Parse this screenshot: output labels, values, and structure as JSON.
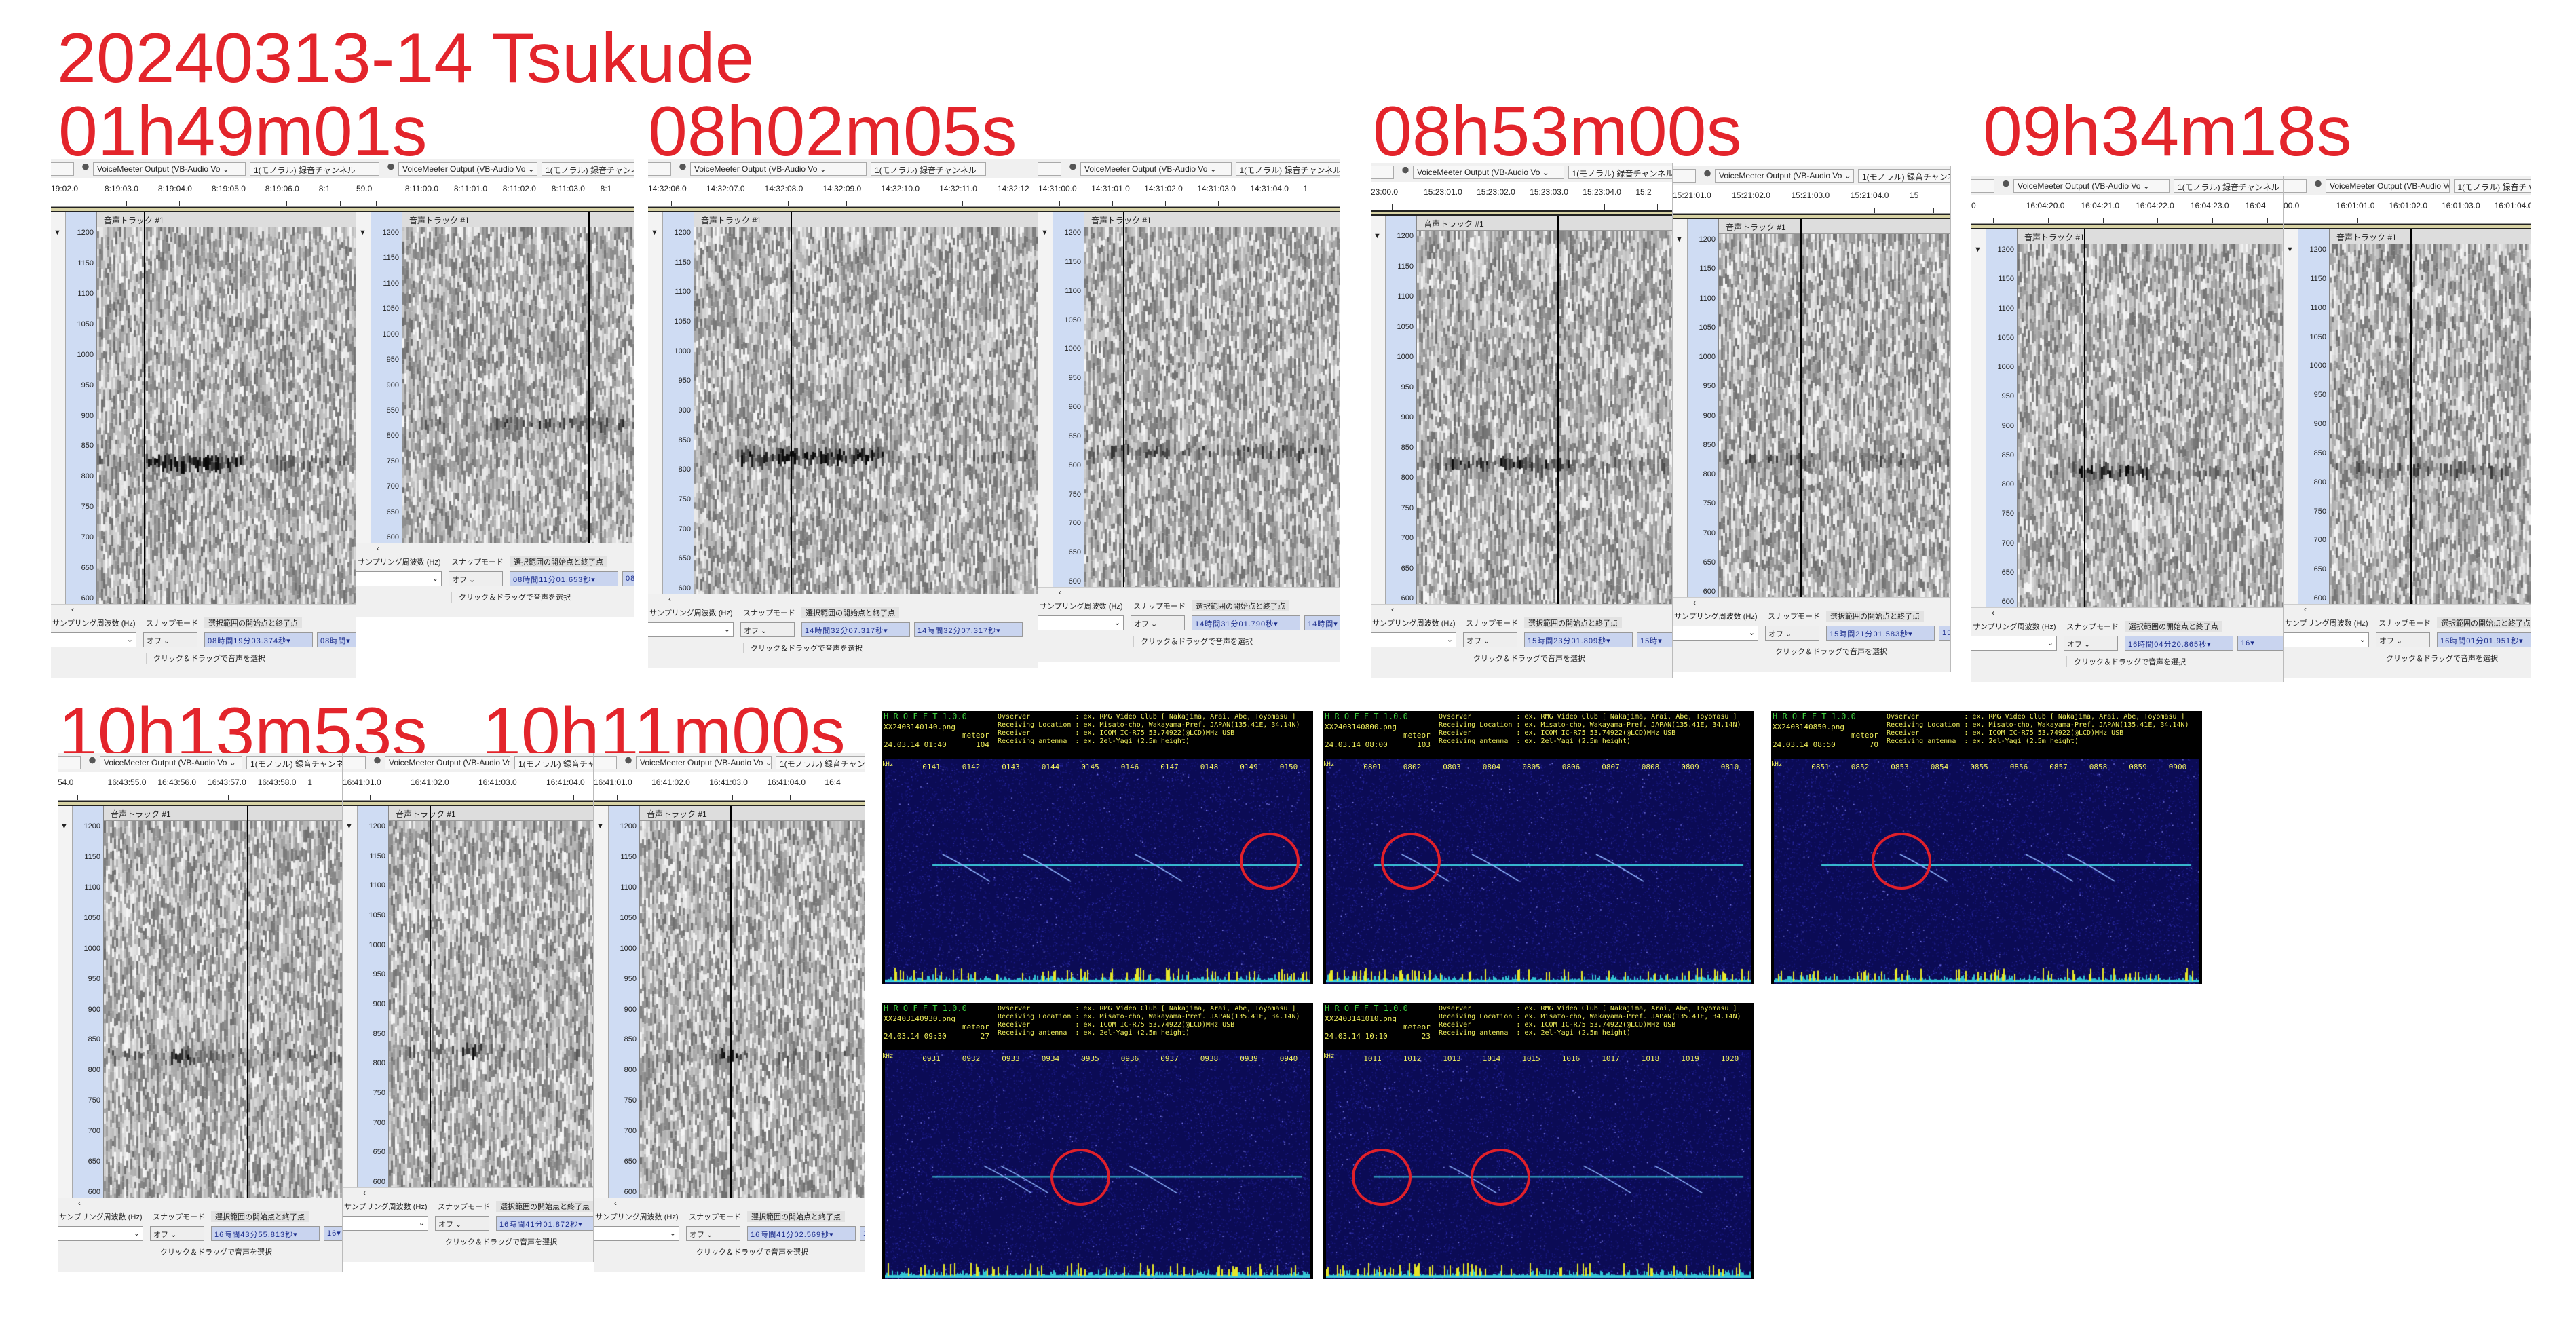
{
  "title": "20240313-14  Tsukude",
  "labels": [
    "01h49m01s",
    "08h02m05s",
    "08h53m00s",
    "09h34m18s",
    "10h13m53s",
    "10h11m00s"
  ],
  "audacity": {
    "input_device": "VoiceMeeter Output (VB-Audio Vo",
    "channel": "1(モノラル) 録音チャンネル",
    "track_name": "音声トラック #1",
    "freq_axis": [
      "1200",
      "1150",
      "1100",
      "1050",
      "1000",
      "950",
      "900",
      "850",
      "800",
      "750",
      "700",
      "650",
      "600"
    ],
    "rate_label": "サンプリング周波数 (Hz)",
    "snap_label": "スナップモード",
    "selection_label": "選択範囲の開始点と終了点",
    "snap_value": "オフ",
    "status": "クリック＆ドラッグで音声を選択",
    "panels": [
      {
        "ticks": [
          "19:02.0",
          "8:19:03.0",
          "8:19:04.0",
          "8:19:05.0",
          "8:19:06.0",
          "8:1"
        ],
        "sel_start": "08時間19分03.374秒",
        "sel_end": "08時間"
      },
      {
        "ticks": [
          "59.0",
          "8:11:00.0",
          "8:11:01.0",
          "8:11:02.0",
          "8:11:03.0",
          "8:1"
        ],
        "sel_start": "08時間11分01.653秒",
        "sel_end": "08"
      },
      {
        "ticks": [
          "14:32:06.0",
          "14:32:07.0",
          "14:32:08.0",
          "14:32:09.0",
          "14:32:10.0",
          "14:32:11.0",
          "14:32:12"
        ],
        "sel_start": "14時間32分07.317秒",
        "sel_end": "14時間32分07.317秒"
      },
      {
        "ticks": [
          "14:31:00.0",
          "14:31:01.0",
          "14:31:02.0",
          "14:31:03.0",
          "14:31:04.0",
          "1"
        ],
        "sel_start": "14時間31分01.790秒",
        "sel_end": "14時間"
      },
      {
        "ticks": [
          "23:00.0",
          "15:23:01.0",
          "15:23:02.0",
          "15:23:03.0",
          "15:23:04.0",
          "15:2"
        ],
        "sel_start": "15時間23分01.809秒",
        "sel_end": "15時"
      },
      {
        "ticks": [
          "15:21:01.0",
          "15:21:02.0",
          "15:21:03.0",
          "15:21:04.0",
          "15"
        ],
        "sel_start": "15時間21分01.583秒",
        "sel_end": "15"
      },
      {
        "ticks": [
          "0",
          "16:04:20.0",
          "16:04:21.0",
          "16:04:22.0",
          "16:04:23.0",
          "16:04"
        ],
        "sel_start": "16時間04分20.865秒",
        "sel_end": "16"
      },
      {
        "ticks": [
          "00.0",
          "16:01:01.0",
          "16:01:02.0",
          "16:01:03.0",
          "16:01:04.0"
        ],
        "sel_start": "16時間01分01.951秒",
        "sel_end": "1"
      },
      {
        "ticks": [
          "54.0",
          "16:43:55.0",
          "16:43:56.0",
          "16:43:57.0",
          "16:43:58.0",
          "1"
        ],
        "sel_start": "16時間43分55.813秒",
        "sel_end": "16"
      },
      {
        "ticks": [
          "16:41:01.0",
          "16:41:02.0",
          "16:41:03.0",
          "16:41:04.0"
        ],
        "sel_start": "16時間41分01.872秒",
        "sel_end": ""
      },
      {
        "ticks": [
          "16:41:01.0",
          "16:41:02.0",
          "16:41:03.0",
          "16:41:04.0",
          "16:4"
        ],
        "sel_start": "16時間41分02.569秒",
        "sel_end": "1"
      }
    ]
  },
  "hrofft": {
    "title": "H R O F F T 1.0.0",
    "meteor_label": "meteor",
    "unit": "kHz",
    "info": [
      "Ovserver           : ex. RMG Video Club [ Nakajima, Arai, Abe, Toyomasu ]",
      "Receiving Location : ex. Misato-cho, Wakayama-Pref. JAPAN(135.41E, 34.14N)",
      "Receiver           : ex. ICOM IC-R75 53.74922(@LCD)MHz USB",
      "Receiving antenna  : ex. 2el-Yagi (2.5m height)"
    ],
    "panels": [
      {
        "file": "XX2403140140.png",
        "date": "24.03.14 01:40",
        "count": "104",
        "ticks": [
          "0141",
          "0142",
          "0143",
          "0144",
          "0145",
          "0146",
          "0147",
          "0148",
          "0149",
          "0150"
        ]
      },
      {
        "file": "XX2403140800.png",
        "date": "24.03.14 08:00",
        "count": "103",
        "ticks": [
          "0801",
          "0802",
          "0803",
          "0804",
          "0805",
          "0806",
          "0807",
          "0808",
          "0809",
          "0810"
        ]
      },
      {
        "file": "XX2403140850.png",
        "date": "24.03.14 08:50",
        "count": "70",
        "ticks": [
          "0851",
          "0852",
          "0853",
          "0854",
          "0855",
          "0856",
          "0857",
          "0858",
          "0859",
          "0900"
        ]
      },
      {
        "file": "XX2403140930.png",
        "date": "24.03.14 09:30",
        "count": "27",
        "ticks": [
          "0931",
          "0932",
          "0933",
          "0934",
          "0935",
          "0936",
          "0937",
          "0938",
          "0939",
          "0940"
        ]
      },
      {
        "file": "XX2403141010.png",
        "date": "24.03.14 10:10",
        "count": "23",
        "ticks": [
          "1011",
          "1012",
          "1013",
          "1014",
          "1015",
          "1016",
          "1017",
          "1018",
          "1019",
          "1020"
        ]
      }
    ]
  },
  "colors": {
    "label_red": "#e3242b",
    "hrofft_bg": "#0b0b55",
    "hrofft_line": "#3fd0e0",
    "circle": "#e0202a"
  }
}
